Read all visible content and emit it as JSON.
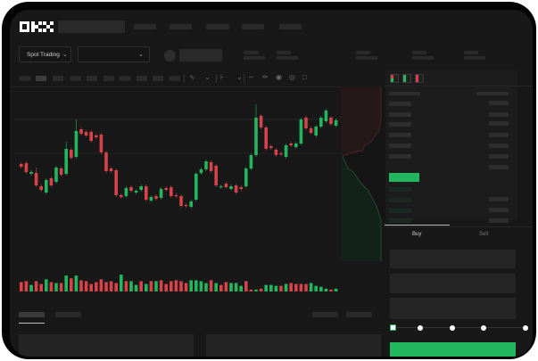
{
  "brand": {
    "logo_text": "OKX"
  },
  "trade_bar": {
    "market_type": "Spot Trading",
    "pair_select": ""
  },
  "toolbar": {
    "icons": [
      "indicator-icon",
      "chevron-down-icon",
      "candle-type-icon",
      "chevron-down-icon",
      "line-tool-icon",
      "ruler-icon",
      "camera-icon",
      "settings-icon",
      "fullscreen-icon"
    ]
  },
  "order_book": {
    "view_icons": [
      "both-sides-icon",
      "bids-only-icon",
      "asks-only-icon"
    ]
  },
  "order_form": {
    "tabs": [
      {
        "label": "Buy",
        "active": true
      },
      {
        "label": "Sell",
        "active": false
      }
    ],
    "leverage_slider_value": 0
  },
  "colors": {
    "up": "#22b75e",
    "down": "#d8434a",
    "background": "#181818",
    "accent": "#22b75e"
  },
  "chart_data": {
    "type": "candlestick",
    "candles": [
      {
        "o": 68,
        "c": 65
      },
      {
        "o": 69,
        "c": 59
      },
      {
        "o": 57,
        "c": 59
      },
      {
        "o": 58,
        "c": 44,
        "h": 64
      },
      {
        "o": 43,
        "c": 39
      },
      {
        "o": 36,
        "c": 50
      },
      {
        "o": 52,
        "c": 44
      },
      {
        "o": 48,
        "c": 64
      },
      {
        "o": 63,
        "c": 56
      },
      {
        "o": 57,
        "c": 85,
        "h": 93
      },
      {
        "o": 84,
        "c": 75
      },
      {
        "o": 76,
        "c": 105,
        "h": 118
      },
      {
        "o": 107,
        "c": 102
      },
      {
        "o": 104,
        "c": 100
      },
      {
        "o": 104,
        "c": 94
      },
      {
        "o": 100,
        "c": 98
      },
      {
        "o": 101,
        "c": 81
      },
      {
        "o": 81,
        "c": 60
      },
      {
        "o": 63,
        "c": 60
      },
      {
        "o": 61,
        "c": 33
      },
      {
        "o": 33,
        "c": 31
      },
      {
        "o": 32,
        "c": 41
      },
      {
        "o": 42,
        "c": 38
      },
      {
        "o": 36,
        "c": 38
      },
      {
        "o": 39,
        "c": 43
      },
      {
        "o": 43,
        "c": 28
      },
      {
        "o": 27,
        "c": 31
      },
      {
        "o": 32,
        "c": 29
      },
      {
        "o": 30,
        "c": 40
      },
      {
        "o": 41,
        "c": 39
      },
      {
        "o": 42,
        "c": 32
      },
      {
        "o": 33,
        "c": 32
      },
      {
        "o": 32,
        "c": 21
      },
      {
        "o": 22,
        "c": 21
      },
      {
        "o": 20,
        "c": 26
      },
      {
        "o": 28,
        "c": 57
      },
      {
        "o": 58,
        "c": 62
      },
      {
        "o": 62,
        "c": 71
      },
      {
        "o": 70,
        "c": 60
      },
      {
        "o": 66,
        "c": 44
      },
      {
        "o": 42,
        "c": 43
      },
      {
        "o": 46,
        "c": 42
      },
      {
        "o": 40,
        "c": 43
      },
      {
        "o": 44,
        "c": 36
      },
      {
        "o": 42,
        "c": 40
      },
      {
        "o": 43,
        "c": 63
      },
      {
        "o": 63,
        "c": 78
      },
      {
        "o": 78,
        "c": 120,
        "h": 135
      },
      {
        "o": 122,
        "c": 109
      },
      {
        "o": 109,
        "c": 85
      },
      {
        "o": 88,
        "c": 86
      },
      {
        "o": 84,
        "c": 78
      },
      {
        "o": 80,
        "c": 79
      },
      {
        "o": 76,
        "c": 89
      },
      {
        "o": 91,
        "c": 89
      },
      {
        "o": 87,
        "c": 91
      },
      {
        "o": 91,
        "c": 118
      },
      {
        "o": 120,
        "c": 108
      },
      {
        "o": 108,
        "c": 103
      },
      {
        "o": 100,
        "c": 110
      },
      {
        "o": 110,
        "c": 120
      },
      {
        "o": 116,
        "c": 128
      },
      {
        "o": 120,
        "c": 113
      },
      {
        "o": 111,
        "c": 117
      }
    ],
    "volume": [
      {
        "v": 10,
        "up": false
      },
      {
        "v": 11,
        "up": false
      },
      {
        "v": 7,
        "up": true
      },
      {
        "v": 11,
        "up": false
      },
      {
        "v": 8,
        "up": false
      },
      {
        "v": 13,
        "up": true
      },
      {
        "v": 10,
        "up": false
      },
      {
        "v": 9,
        "up": true
      },
      {
        "v": 9,
        "up": false
      },
      {
        "v": 17,
        "up": true
      },
      {
        "v": 14,
        "up": false
      },
      {
        "v": 17,
        "up": true
      },
      {
        "v": 12,
        "up": false
      },
      {
        "v": 11,
        "up": false
      },
      {
        "v": 8,
        "up": false
      },
      {
        "v": 10,
        "up": false
      },
      {
        "v": 13,
        "up": false
      },
      {
        "v": 10,
        "up": false
      },
      {
        "v": 11,
        "up": false
      },
      {
        "v": 9,
        "up": false
      },
      {
        "v": 18,
        "up": true
      },
      {
        "v": 11,
        "up": false
      },
      {
        "v": 11,
        "up": true
      },
      {
        "v": 7,
        "up": true
      },
      {
        "v": 11,
        "up": false
      },
      {
        "v": 8,
        "up": true
      },
      {
        "v": 11,
        "up": false
      },
      {
        "v": 11,
        "up": true
      },
      {
        "v": 12,
        "up": false
      },
      {
        "v": 8,
        "up": false
      },
      {
        "v": 11,
        "up": false
      },
      {
        "v": 12,
        "up": false
      },
      {
        "v": 11,
        "up": false
      },
      {
        "v": 9,
        "up": false
      },
      {
        "v": 12,
        "up": true
      },
      {
        "v": 12,
        "up": true
      },
      {
        "v": 11,
        "up": true
      },
      {
        "v": 9,
        "up": true
      },
      {
        "v": 12,
        "up": false
      },
      {
        "v": 9,
        "up": true
      },
      {
        "v": 7,
        "up": false
      },
      {
        "v": 10,
        "up": false
      },
      {
        "v": 9,
        "up": true
      },
      {
        "v": 9,
        "up": true
      },
      {
        "v": 6,
        "up": true
      },
      {
        "v": 11,
        "up": false
      },
      {
        "v": 2,
        "up": false
      },
      {
        "v": 2,
        "up": true
      },
      {
        "v": 3,
        "up": false
      },
      {
        "v": 7,
        "up": true
      },
      {
        "v": 7,
        "up": true
      },
      {
        "v": 6,
        "up": true
      },
      {
        "v": 6,
        "up": false
      },
      {
        "v": 8,
        "up": true
      },
      {
        "v": 9,
        "up": false
      },
      {
        "v": 8,
        "up": false
      },
      {
        "v": 8,
        "up": false
      },
      {
        "v": 8,
        "up": false
      },
      {
        "v": 9,
        "up": true
      },
      {
        "v": 6,
        "up": true
      },
      {
        "v": 5,
        "up": true
      },
      {
        "v": 3,
        "up": true
      },
      {
        "v": 2,
        "up": false
      },
      {
        "v": 3,
        "up": true
      }
    ],
    "grid": true
  }
}
